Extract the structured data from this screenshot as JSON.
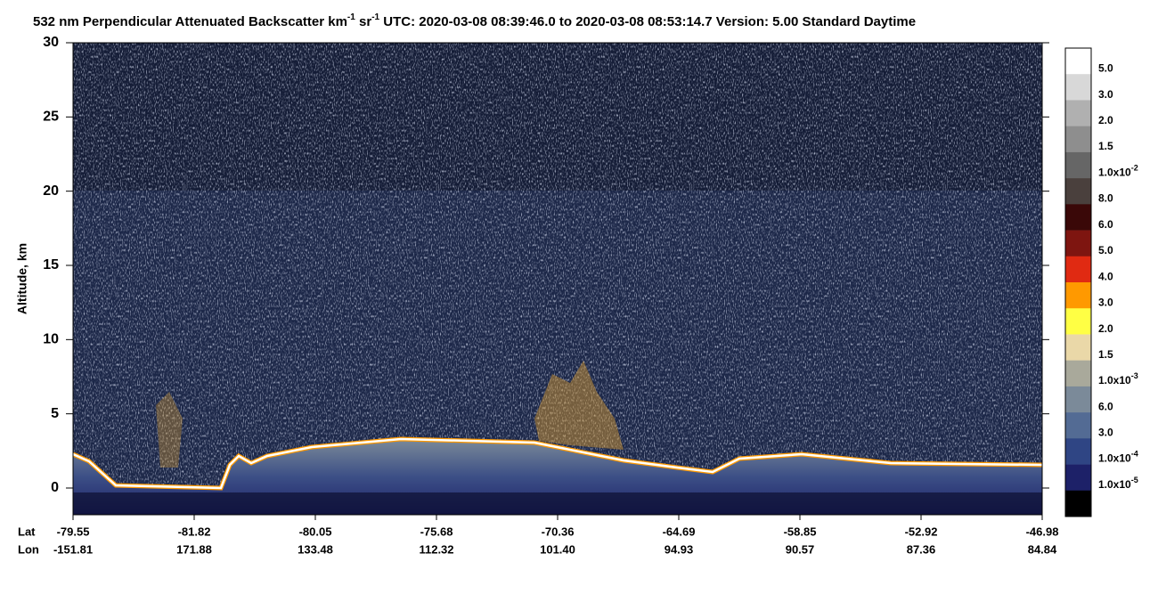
{
  "chart_data": {
    "type": "curtain",
    "title": [
      {
        "text": "532 nm Perpendicular Attenuated Backscatter km"
      },
      {
        "sup": "-1"
      },
      {
        "text": " sr"
      },
      {
        "sup": "-1"
      },
      {
        "text": "  UTC: 2020-03-08 08:39:46.0 to 2020-03-08 08:53:14.7  Version: 5.00 Standard Daytime"
      }
    ],
    "y_label": "Altitude, km",
    "ylim": [
      -1.8,
      30
    ],
    "yticks": [
      0,
      5,
      10,
      15,
      20,
      25,
      30
    ],
    "x_rows": [
      {
        "name": "Lat",
        "labels": [
          "-79.55",
          "-81.82",
          "-80.05",
          "-75.68",
          "-70.36",
          "-64.69",
          "-58.85",
          "-52.92",
          "-46.98"
        ]
      },
      {
        "name": "Lon",
        "labels": [
          "-151.81",
          "171.88",
          "133.48",
          "112.32",
          "101.40",
          "94.93",
          "90.57",
          "87.36",
          "84.84"
        ]
      }
    ],
    "colorbar": {
      "colors": [
        "#ffffff",
        "#d8d8d8",
        "#b0b0b0",
        "#8e8e8e",
        "#666666",
        "#4a403d",
        "#3a0808",
        "#7e1510",
        "#e02a12",
        "#ff9900",
        "#ffff44",
        "#ead8a8",
        "#a9a99b",
        "#7b8a99",
        "#536b94",
        "#2f4584",
        "#1d2168",
        "#000000"
      ],
      "labels": [
        "5.0",
        "3.0",
        "2.0",
        "1.5",
        {
          "text": "1.0x10",
          "exp": "-2"
        },
        "8.0",
        "6.0",
        "5.0",
        "4.0",
        "3.0",
        "2.0",
        "1.5",
        {
          "text": "1.0x10",
          "exp": "-3"
        },
        "6.0",
        "3.0",
        {
          "text": "1.0x10",
          "exp": "-4"
        },
        {
          "text": "1.0x10",
          "exp": "-5"
        }
      ]
    }
  }
}
